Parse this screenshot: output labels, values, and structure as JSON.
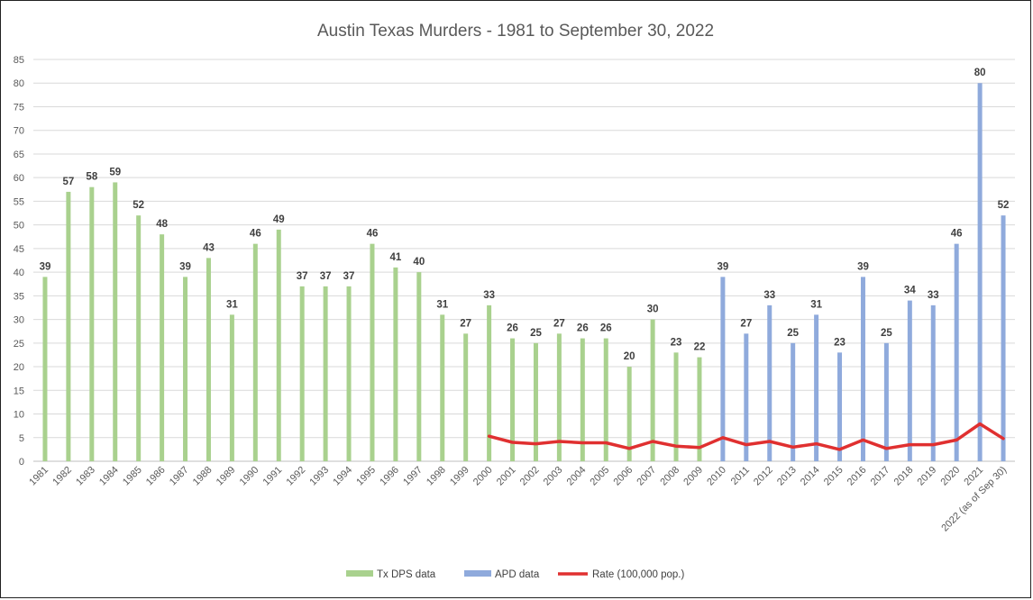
{
  "chart_data": {
    "type": "bar",
    "title": "Austin Texas Murders - 1981 to September 30, 2022",
    "ylim": [
      0,
      85
    ],
    "yticks": [
      0,
      5,
      10,
      15,
      20,
      25,
      30,
      35,
      40,
      45,
      50,
      55,
      60,
      65,
      70,
      75,
      80,
      85
    ],
    "grid": true,
    "legend_position": "bottom",
    "categories": [
      "1981",
      "1982",
      "1983",
      "1984",
      "1985",
      "1986",
      "1987",
      "1988",
      "1989",
      "1990",
      "1991",
      "1992",
      "1993",
      "1994",
      "1995",
      "1996",
      "1997",
      "1998",
      "1999",
      "2000",
      "2001",
      "2002",
      "2003",
      "2004",
      "2005",
      "2006",
      "2007",
      "2008",
      "2009",
      "2010",
      "2011",
      "2012",
      "2013",
      "2014",
      "2015",
      "2016",
      "2017",
      "2018",
      "2019",
      "2020",
      "2021",
      "2022 (as of Sep 30)"
    ],
    "series": [
      {
        "name": "Tx DPS data",
        "kind": "bar",
        "color": "#a9d18e",
        "values": [
          39,
          57,
          58,
          59,
          52,
          48,
          39,
          43,
          31,
          46,
          49,
          37,
          37,
          37,
          46,
          41,
          40,
          31,
          27,
          33,
          26,
          25,
          27,
          26,
          26,
          20,
          30,
          23,
          22,
          null,
          null,
          null,
          null,
          null,
          null,
          null,
          null,
          null,
          null,
          null,
          null,
          null
        ]
      },
      {
        "name": "APD data",
        "kind": "bar",
        "color": "#8faadc",
        "values": [
          null,
          null,
          null,
          null,
          null,
          null,
          null,
          null,
          null,
          null,
          null,
          null,
          null,
          null,
          null,
          null,
          null,
          null,
          null,
          null,
          null,
          null,
          null,
          null,
          null,
          null,
          null,
          null,
          null,
          39,
          27,
          33,
          25,
          31,
          23,
          39,
          25,
          34,
          33,
          46,
          80,
          52
        ]
      },
      {
        "name": "Rate (100,000 pop.)",
        "kind": "line",
        "color": "#e03030",
        "values": [
          null,
          null,
          null,
          null,
          null,
          null,
          null,
          null,
          null,
          null,
          null,
          null,
          null,
          null,
          null,
          null,
          null,
          null,
          null,
          5.3,
          4.0,
          3.7,
          4.2,
          3.9,
          3.9,
          2.7,
          4.2,
          3.2,
          2.9,
          5.0,
          3.5,
          4.2,
          3.0,
          3.7,
          2.5,
          4.5,
          2.7,
          3.5,
          3.5,
          4.5,
          7.9,
          4.8
        ]
      }
    ]
  }
}
